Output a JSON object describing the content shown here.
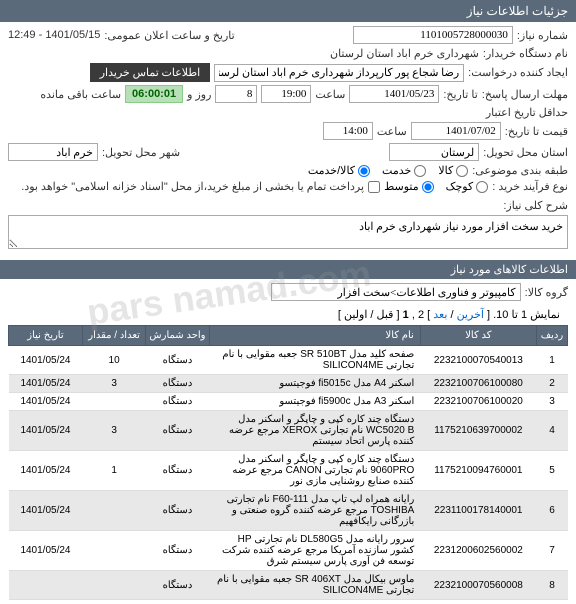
{
  "header": {
    "title": "جزئیات اطلاعات نیاز"
  },
  "fields": {
    "need_no_label": "شماره نیاز:",
    "need_no": "1101005728000030",
    "announce_label": "تاریخ و ساعت اعلان عمومی:",
    "announce_value": "1401/05/15 - 12:49",
    "buyer_org_label": "نام دستگاه خریدار:",
    "buyer_org": "شهرداری خرم اباد استان لرستان",
    "requester_label": "ایجاد کننده درخواست:",
    "requester": "رضا شجاع پور کارپرداز شهرداری خرم اباد استان لرستان",
    "contact_btn": "اطلاعات تماس خریدار",
    "deadline_label": "مهلت ارسال پاسخ:",
    "deadline_until": "تا تاریخ:",
    "deadline_date": "1401/05/23",
    "time_label": "ساعت",
    "deadline_time": "19:00",
    "days_remaining": "8",
    "days_and": "روز و",
    "time_remaining": "06:00:01",
    "remaining_label": "ساعت باقی مانده",
    "validity_label": "حداقل تاریخ اعتبار",
    "validity_until": "قیمت تا تاریخ:",
    "validity_date": "1401/07/02",
    "validity_time": "14:00",
    "province_label": "استان محل تحویل:",
    "province": "لرستان",
    "city_label": "شهر محل تحویل:",
    "city": "خرم اباد",
    "category_label": "طبقه بندی موضوعی:",
    "cat_goods": "کالا",
    "cat_service": "خدمت",
    "cat_both": "کالا/خدمت",
    "process_label": "نوع فرآیند خرید :",
    "proc_small": "کوچک",
    "proc_medium": "متوسط",
    "payment_note": "پرداخت تمام یا بخشی از مبلغ خرید،از محل \"اسناد خزانه اسلامی\" خواهد بود.",
    "desc_label": "شرح کلی نیاز:",
    "desc_value": "خرید سخت افزار مورد نیاز شهرداری خرم اباد"
  },
  "items_header": "اطلاعات کالاهای مورد نیاز",
  "group_label": "گروه کالا:",
  "group_value": "کامپیوتر و فناوری اطلاعات>سخت افزار",
  "pager": {
    "text_prefix": "نمایش 1 تا 10. [ ",
    "last": "آخرین",
    "sep1": " / ",
    "next": "بعد",
    "mid": " ] 2 ,",
    "current": "1",
    "end": " [ قبل / اولین ]"
  },
  "columns": {
    "row": "ردیف",
    "code": "کد کالا",
    "name": "نام کالا",
    "unit": "واحد شمارش",
    "qty": "تعداد / مقدار",
    "date": "تاریخ نیاز"
  },
  "rows": [
    {
      "n": "1",
      "code": "2232100070540013",
      "name": "صفحه کلید مدل SR 510BT جعبه مقوایی با نام تجارتی SILICON4ME",
      "unit": "دستگاه",
      "qty": "10",
      "date": "1401/05/24"
    },
    {
      "n": "2",
      "code": "2232100706100080",
      "name": "اسکنر A4 مدل fi5015c فوجیتسو",
      "unit": "دستگاه",
      "qty": "3",
      "date": "1401/05/24"
    },
    {
      "n": "3",
      "code": "2232100706100020",
      "name": "اسکنر A3 مدل fi5900c فوجیتسو",
      "unit": "دستگاه",
      "qty": "",
      "date": "1401/05/24"
    },
    {
      "n": "4",
      "code": "1175210639700002",
      "name": "دستگاه چند کاره کپی و چاپگر و اسکنر مدل WC5020 B نام تجارتی XEROX مرجع عرضه کننده پارس اتحاد سیستم",
      "unit": "دستگاه",
      "qty": "3",
      "date": "1401/05/24"
    },
    {
      "n": "5",
      "code": "1175210094760001",
      "name": "دستگاه چند کاره کپی و چاپگر و اسکنر مدل 9060PRO نام تجارتی CANON مرجع عرضه کننده صنایع روشنایی مازی نور",
      "unit": "دستگاه",
      "qty": "1",
      "date": "1401/05/24"
    },
    {
      "n": "6",
      "code": "2231100178140001",
      "name": "رایانه همراه لپ تاپ مدل F60-111 نام تجارتی TOSHIBA مرجع عرضه کننده گروه صنعتی و بازرگانی رایکافهیم",
      "unit": "دستگاه",
      "qty": "",
      "date": "1401/05/24"
    },
    {
      "n": "7",
      "code": "2231200602560002",
      "name": "سرور رایانه مدل DL580G5 نام تجارتی HP کشور سازنده آمریکا مرجع عرضه کننده شرکت توسعه فن آوری پارس سیستم شرق",
      "unit": "دستگاه",
      "qty": "",
      "date": "1401/05/24"
    },
    {
      "n": "8",
      "code": "2232100070560008",
      "name": "ماوس بیکال مدل SR 406XT جعبه مقوایی با نام تجارتی SILICON4ME",
      "unit": "دستگاه",
      "qty": "",
      "date": ""
    }
  ],
  "watermark": "pars namad.com"
}
